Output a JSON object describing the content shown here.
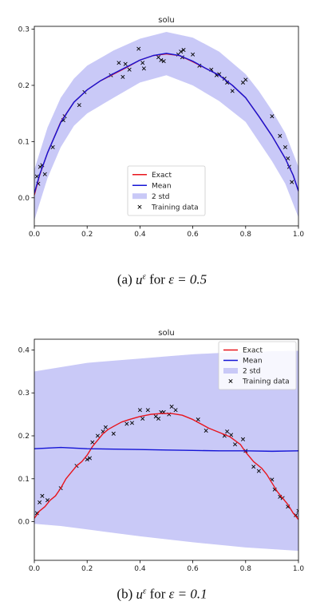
{
  "chart_data": [
    {
      "type": "line",
      "title": "solu",
      "xlim": [
        0.0,
        1.0
      ],
      "ylim": [
        -0.05,
        0.305
      ],
      "xticks": [
        "0.0",
        "0.2",
        "0.4",
        "0.6",
        "0.8",
        "1.0"
      ],
      "yticks": [
        "0.0",
        "0.1",
        "0.2",
        "0.3"
      ],
      "legend_position": "bottom-center",
      "legend": [
        "Exact",
        "Mean",
        "2 std",
        "Training data"
      ],
      "colors": {
        "exact": "#e8141c",
        "mean": "#1414d6",
        "band": "#c9c9f7",
        "points": "#000000"
      },
      "series": [
        {
          "name": "Exact",
          "x": [
            0,
            0.02,
            0.05,
            0.1,
            0.15,
            0.2,
            0.25,
            0.3,
            0.35,
            0.4,
            0.45,
            0.5,
            0.55,
            0.6,
            0.65,
            0.7,
            0.75,
            0.8,
            0.85,
            0.9,
            0.95,
            0.98,
            1.0
          ],
          "y": [
            0.005,
            0.04,
            0.08,
            0.135,
            0.17,
            0.192,
            0.208,
            0.22,
            0.232,
            0.245,
            0.253,
            0.256,
            0.253,
            0.242,
            0.23,
            0.218,
            0.2,
            0.178,
            0.145,
            0.11,
            0.07,
            0.04,
            0.012
          ]
        },
        {
          "name": "Mean",
          "x": [
            0,
            0.02,
            0.05,
            0.1,
            0.15,
            0.2,
            0.25,
            0.3,
            0.35,
            0.4,
            0.45,
            0.5,
            0.55,
            0.6,
            0.65,
            0.7,
            0.75,
            0.8,
            0.85,
            0.9,
            0.95,
            0.98,
            1.0
          ],
          "y": [
            0.008,
            0.041,
            0.08,
            0.134,
            0.17,
            0.192,
            0.208,
            0.221,
            0.233,
            0.245,
            0.253,
            0.257,
            0.253,
            0.243,
            0.23,
            0.218,
            0.2,
            0.178,
            0.145,
            0.11,
            0.07,
            0.04,
            0.012
          ]
        },
        {
          "name": "2 std",
          "x": [
            0,
            0.05,
            0.1,
            0.15,
            0.2,
            0.3,
            0.4,
            0.5,
            0.6,
            0.7,
            0.8,
            0.85,
            0.9,
            0.95,
            1.0
          ],
          "upper": [
            0.05,
            0.125,
            0.178,
            0.212,
            0.235,
            0.262,
            0.283,
            0.295,
            0.285,
            0.26,
            0.22,
            0.19,
            0.155,
            0.115,
            0.055
          ],
          "lower": [
            -0.04,
            0.035,
            0.09,
            0.128,
            0.15,
            0.178,
            0.205,
            0.218,
            0.2,
            0.172,
            0.135,
            0.1,
            0.065,
            0.025,
            -0.035
          ]
        },
        {
          "name": "Training data",
          "type": "scatter",
          "x": [
            0.01,
            0.015,
            0.022,
            0.03,
            0.04,
            0.07,
            0.11,
            0.115,
            0.17,
            0.19,
            0.29,
            0.32,
            0.335,
            0.345,
            0.36,
            0.395,
            0.41,
            0.415,
            0.47,
            0.48,
            0.49,
            0.545,
            0.555,
            0.56,
            0.565,
            0.6,
            0.625,
            0.67,
            0.69,
            0.7,
            0.72,
            0.73,
            0.75,
            0.79,
            0.8,
            0.9,
            0.93,
            0.95,
            0.96,
            0.965,
            0.975
          ],
          "y": [
            0.038,
            0.025,
            0.055,
            0.058,
            0.042,
            0.09,
            0.138,
            0.145,
            0.165,
            0.188,
            0.218,
            0.24,
            0.215,
            0.238,
            0.228,
            0.265,
            0.24,
            0.23,
            0.25,
            0.245,
            0.243,
            0.255,
            0.26,
            0.25,
            0.263,
            0.255,
            0.235,
            0.228,
            0.218,
            0.22,
            0.212,
            0.205,
            0.19,
            0.205,
            0.21,
            0.145,
            0.11,
            0.09,
            0.07,
            0.055,
            0.028
          ]
        }
      ]
    },
    {
      "type": "line",
      "title": "solu",
      "xlim": [
        0.0,
        1.0
      ],
      "ylim": [
        -0.09,
        0.425
      ],
      "xticks": [
        "0.0",
        "0.2",
        "0.4",
        "0.6",
        "0.8",
        "1.0"
      ],
      "yticks": [
        "0.0",
        "0.1",
        "0.2",
        "0.3",
        "0.4"
      ],
      "legend_position": "top-right",
      "legend": [
        "Exact",
        "Mean",
        "2 std",
        "Training data"
      ],
      "colors": {
        "exact": "#e8141c",
        "mean": "#1414d6",
        "band": "#c9c9f7",
        "points": "#000000"
      },
      "series": [
        {
          "name": "Exact",
          "x": [
            0,
            0.02,
            0.04,
            0.06,
            0.08,
            0.1,
            0.12,
            0.14,
            0.16,
            0.18,
            0.2,
            0.22,
            0.24,
            0.26,
            0.28,
            0.3,
            0.33,
            0.36,
            0.4,
            0.44,
            0.48,
            0.52,
            0.56,
            0.6,
            0.63,
            0.66,
            0.7,
            0.74,
            0.78,
            0.8,
            0.83,
            0.86,
            0.88,
            0.9,
            0.92,
            0.94,
            0.96,
            0.98,
            1.0
          ],
          "y": [
            0.008,
            0.025,
            0.035,
            0.05,
            0.06,
            0.078,
            0.1,
            0.115,
            0.13,
            0.14,
            0.155,
            0.175,
            0.19,
            0.205,
            0.215,
            0.222,
            0.232,
            0.238,
            0.245,
            0.25,
            0.252,
            0.252,
            0.248,
            0.238,
            0.228,
            0.218,
            0.208,
            0.198,
            0.18,
            0.162,
            0.14,
            0.125,
            0.11,
            0.09,
            0.07,
            0.055,
            0.04,
            0.02,
            0.005
          ]
        },
        {
          "name": "Mean",
          "x": [
            0,
            0.1,
            0.2,
            0.3,
            0.4,
            0.5,
            0.6,
            0.7,
            0.8,
            0.9,
            1.0
          ],
          "y": [
            0.17,
            0.173,
            0.17,
            0.169,
            0.168,
            0.167,
            0.166,
            0.165,
            0.165,
            0.164,
            0.165
          ]
        },
        {
          "name": "2 std",
          "x": [
            0,
            0.1,
            0.2,
            0.3,
            0.4,
            0.5,
            0.6,
            0.7,
            0.8,
            0.9,
            1.0
          ],
          "upper": [
            0.35,
            0.36,
            0.37,
            0.375,
            0.38,
            0.385,
            0.39,
            0.393,
            0.395,
            0.397,
            0.398
          ],
          "lower": [
            -0.005,
            -0.01,
            -0.018,
            -0.026,
            -0.034,
            -0.041,
            -0.048,
            -0.054,
            -0.06,
            -0.064,
            -0.068
          ]
        },
        {
          "name": "Training data",
          "type": "scatter",
          "x": [
            0.01,
            0.02,
            0.03,
            0.05,
            0.1,
            0.16,
            0.2,
            0.21,
            0.22,
            0.24,
            0.26,
            0.27,
            0.3,
            0.35,
            0.37,
            0.4,
            0.41,
            0.43,
            0.46,
            0.47,
            0.48,
            0.49,
            0.51,
            0.52,
            0.535,
            0.62,
            0.65,
            0.72,
            0.73,
            0.745,
            0.76,
            0.79,
            0.8,
            0.83,
            0.85,
            0.9,
            0.91,
            0.93,
            0.94,
            0.96,
            0.99,
            1.0
          ],
          "y": [
            0.02,
            0.045,
            0.06,
            0.05,
            0.078,
            0.13,
            0.145,
            0.148,
            0.185,
            0.2,
            0.21,
            0.22,
            0.205,
            0.228,
            0.23,
            0.26,
            0.24,
            0.26,
            0.245,
            0.24,
            0.255,
            0.255,
            0.25,
            0.268,
            0.26,
            0.238,
            0.212,
            0.2,
            0.21,
            0.202,
            0.18,
            0.192,
            0.165,
            0.128,
            0.118,
            0.098,
            0.075,
            0.058,
            0.055,
            0.035,
            0.015,
            0.025
          ]
        }
      ]
    }
  ],
  "captions": [
    {
      "label": "(a)",
      "var": "u",
      "sup": "ε",
      "text": "for",
      "expr": "ε = 0.5"
    },
    {
      "label": "(b)",
      "var": "u",
      "sup": "ε",
      "text": "for",
      "expr": "ε = 0.1"
    }
  ]
}
